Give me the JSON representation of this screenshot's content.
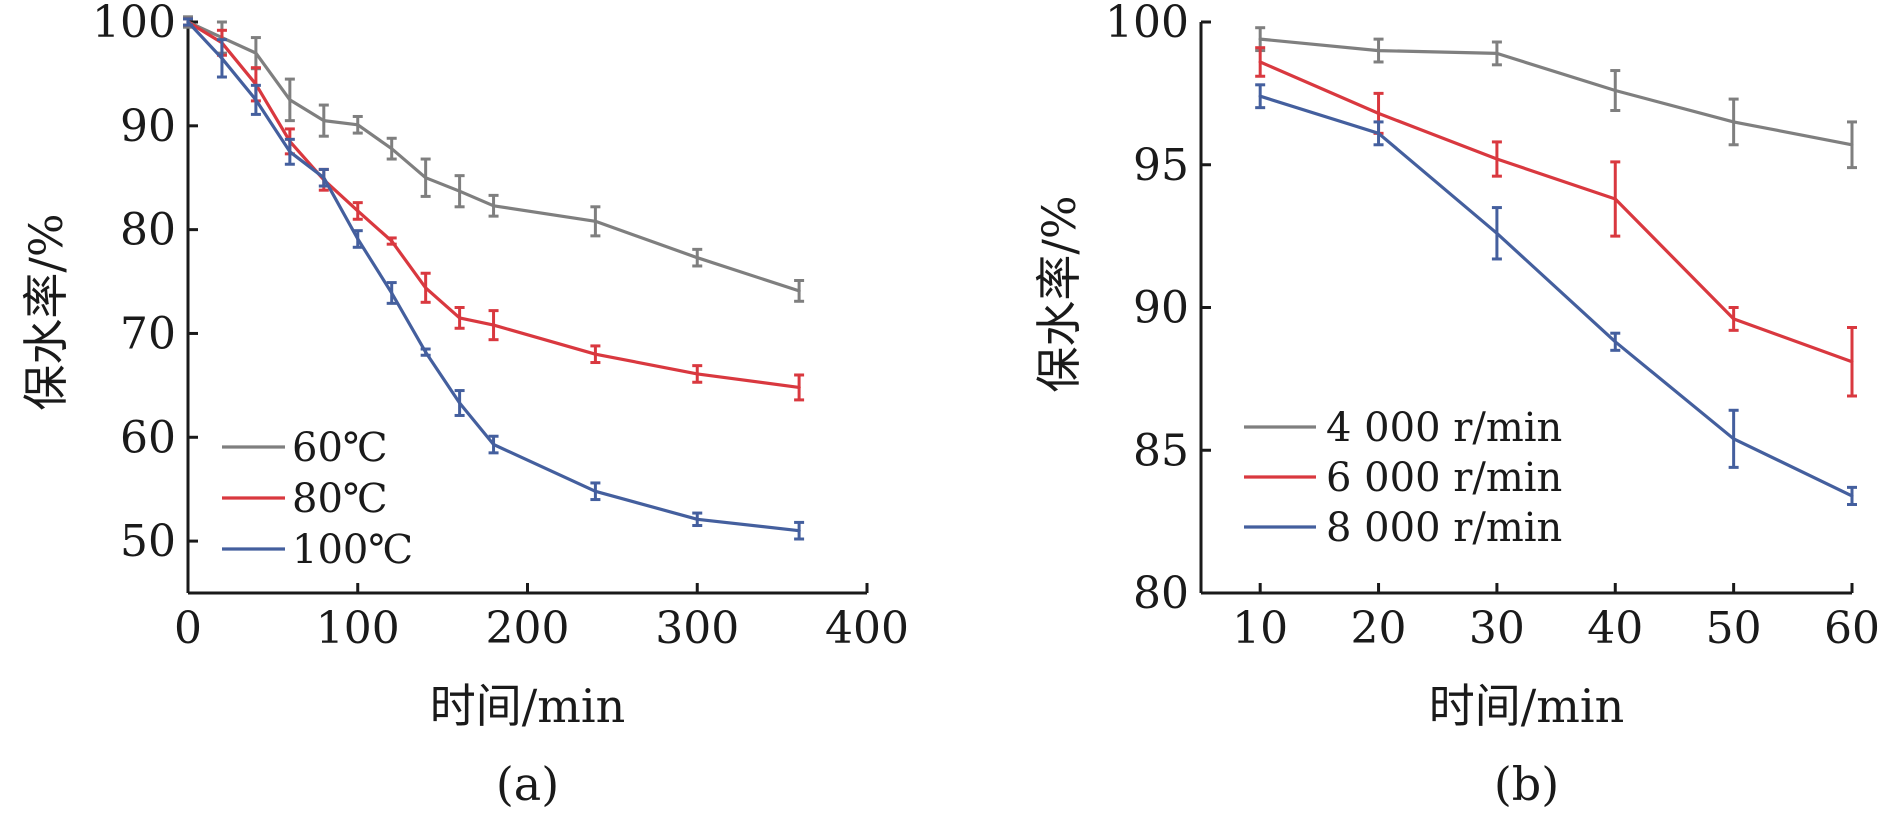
{
  "chart_data": [
    {
      "type": "line",
      "panel_label": "(a)",
      "xlabel": "时间/min",
      "ylabel": "保水率/%",
      "xlim": [
        0,
        400
      ],
      "ylim": [
        45,
        100
      ],
      "xticks": [
        0,
        100,
        200,
        300,
        400
      ],
      "yticks": [
        50,
        60,
        70,
        80,
        90,
        100
      ],
      "grid": false,
      "legend_position": "bottom-left",
      "series": [
        {
          "name": "60℃",
          "color": "#7f7f7f",
          "x": [
            0,
            20,
            40,
            60,
            80,
            100,
            120,
            140,
            160,
            180,
            240,
            300,
            360
          ],
          "y": [
            100,
            98.5,
            97,
            92.5,
            90.5,
            90.1,
            87.8,
            85,
            83.7,
            82.3,
            80.8,
            77.3,
            74.1
          ],
          "err": [
            0.5,
            1.5,
            1.5,
            2.0,
            1.5,
            0.8,
            1.0,
            1.8,
            1.5,
            1.0,
            1.4,
            0.8,
            1.0
          ]
        },
        {
          "name": "80℃",
          "color": "#d9383f",
          "x": [
            0,
            20,
            40,
            60,
            80,
            100,
            120,
            140,
            160,
            180,
            240,
            300,
            360
          ],
          "y": [
            100,
            98,
            94,
            88.5,
            84.8,
            81.8,
            78.9,
            74.4,
            71.5,
            70.8,
            68,
            66.1,
            64.8
          ],
          "err": [
            0.3,
            1.2,
            1.6,
            1.2,
            1.0,
            0.8,
            0.3,
            1.4,
            1.0,
            1.4,
            0.8,
            0.8,
            1.2
          ]
        },
        {
          "name": "100℃",
          "color": "#445f9e",
          "x": [
            0,
            20,
            40,
            60,
            80,
            100,
            120,
            140,
            160,
            180,
            240,
            300,
            360
          ],
          "y": [
            100,
            96.5,
            92.5,
            87.5,
            85,
            79.1,
            73.9,
            68.2,
            63.3,
            59.3,
            54.8,
            52.1,
            51
          ],
          "err": [
            0.3,
            1.8,
            1.4,
            1.2,
            0.8,
            0.8,
            1.0,
            0.3,
            1.2,
            0.8,
            0.8,
            0.6,
            0.8
          ]
        }
      ]
    },
    {
      "type": "line",
      "panel_label": "(b)",
      "xlabel": "时间/min",
      "ylabel": "保水率/%",
      "xlim": [
        5,
        60
      ],
      "ylim": [
        80,
        100
      ],
      "xticks": [
        10,
        20,
        30,
        40,
        50,
        60
      ],
      "yticks": [
        80,
        85,
        90,
        95,
        100
      ],
      "grid": false,
      "legend_position": "bottom-left",
      "series": [
        {
          "name": "4 000 r/min",
          "color": "#7f7f7f",
          "x": [
            10,
            20,
            30,
            40,
            50,
            60
          ],
          "y": [
            99.4,
            99,
            98.9,
            97.6,
            96.5,
            95.7
          ],
          "err": [
            0.4,
            0.4,
            0.4,
            0.7,
            0.8,
            0.8
          ]
        },
        {
          "name": "6 000 r/min",
          "color": "#d9383f",
          "x": [
            10,
            20,
            30,
            40,
            50,
            60
          ],
          "y": [
            98.6,
            96.8,
            95.2,
            93.8,
            89.6,
            88.1
          ],
          "err": [
            0.5,
            0.7,
            0.6,
            1.3,
            0.4,
            1.2
          ]
        },
        {
          "name": "8 000 r/min",
          "color": "#445f9e",
          "x": [
            10,
            20,
            30,
            40,
            50,
            60
          ],
          "y": [
            97.4,
            96.1,
            92.6,
            88.8,
            85.4,
            83.4
          ],
          "err": [
            0.4,
            0.4,
            0.9,
            0.3,
            1.0,
            0.3
          ]
        }
      ]
    }
  ]
}
